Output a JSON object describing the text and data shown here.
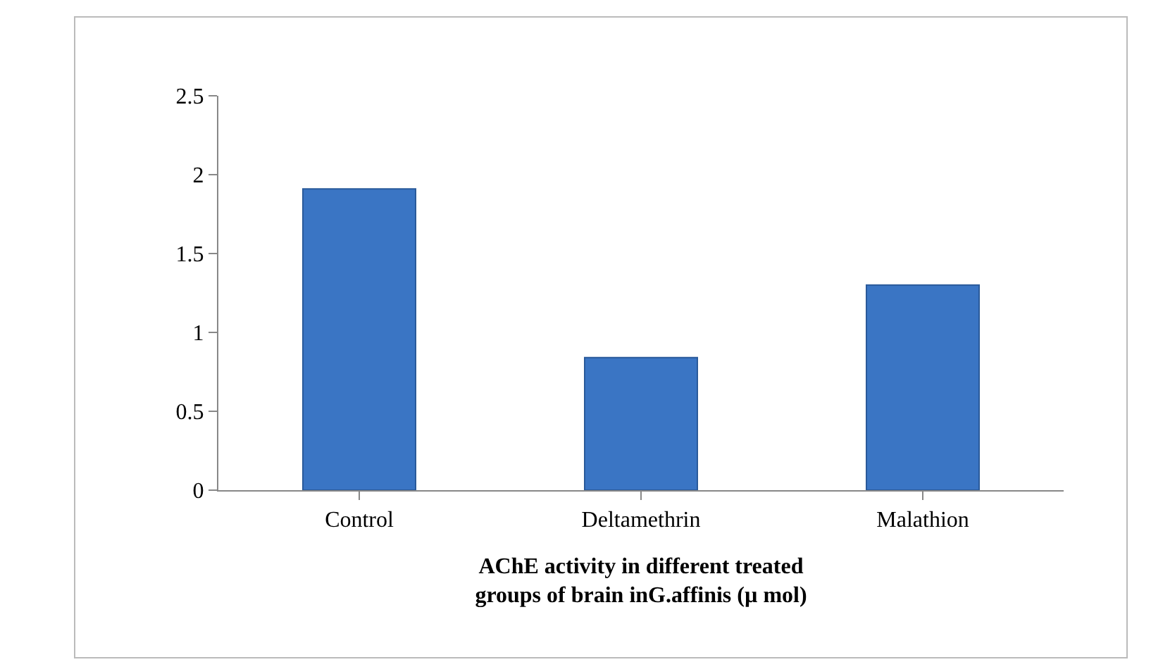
{
  "chart_data": {
    "type": "bar",
    "xlabel": "AChE activity in different treated\ngroups of brain inG.affinis (µ mol)",
    "categories": [
      "Control",
      "Deltamethrin",
      "Malathion"
    ],
    "values": [
      1.91,
      0.84,
      1.3
    ],
    "color": "#3a75c4",
    "ylim": [
      0,
      2.5
    ],
    "yticks": [
      0,
      0.5,
      1,
      1.5,
      2,
      2.5
    ]
  }
}
